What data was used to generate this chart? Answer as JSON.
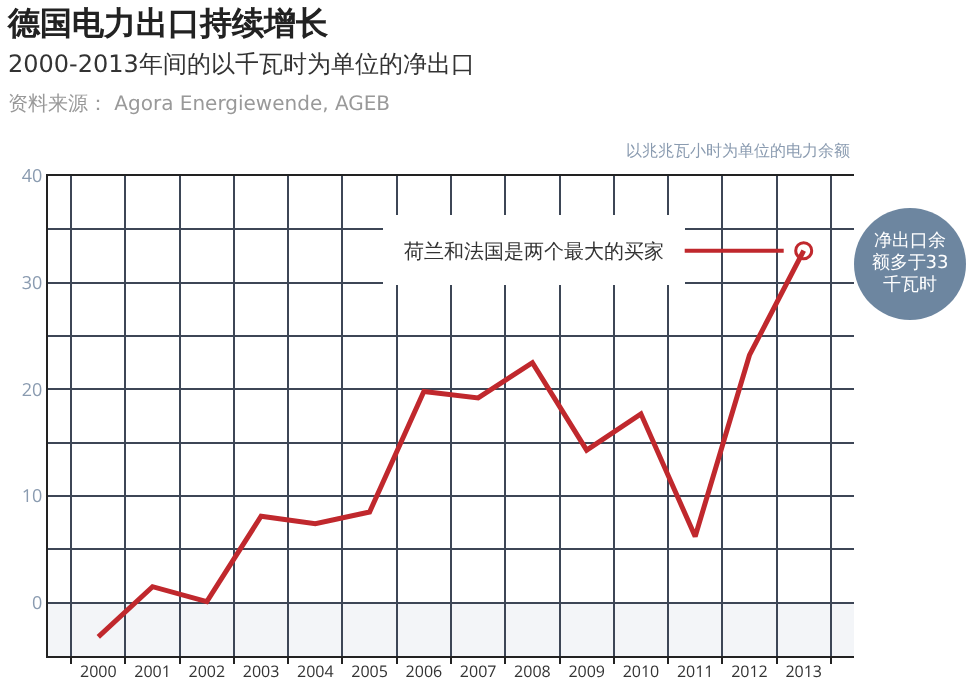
{
  "chart_data": {
    "type": "line",
    "title": "德国电力出口持续增长",
    "subtitle": "2000-2013年间的以千瓦时为单位的净出口",
    "ylabel": "以兆兆瓦小时为单位的电力余额",
    "categories": [
      "2000",
      "2001",
      "2002",
      "2003",
      "2004",
      "2005",
      "2006",
      "2007",
      "2008",
      "2009",
      "2010",
      "2011",
      "2012",
      "2013"
    ],
    "series": [
      {
        "color": "#c0282d",
        "values": [
          -3.2,
          1.5,
          0.1,
          8.1,
          7.4,
          8.5,
          19.8,
          19.2,
          22.5,
          14.3,
          17.7,
          6.2,
          23.2,
          33
        ]
      },
      {
        "type": "scatter",
        "marker": "circle",
        "color": "#c0282d",
        "values": [
          null,
          null,
          null,
          null,
          null,
          null,
          null,
          null,
          null,
          null,
          null,
          null,
          null,
          33
        ]
      }
    ],
    "ylim": [
      -5,
      40
    ],
    "yticks": [
      {
        "value": -5,
        "label": null
      },
      0,
      {
        "value": 5,
        "label": null
      },
      10,
      {
        "value": 15,
        "label": null
      },
      20,
      {
        "value": 25,
        "label": null
      },
      30,
      {
        "value": 35,
        "label": null
      },
      40
    ],
    "bands": [
      {
        "axis": "y",
        "from": -5,
        "to": 0,
        "color": "#f3f5f8"
      }
    ],
    "annotations": [
      "资料来源： Agora Energiewende, AGEB",
      {
        "text": "荷兰和法国是两个最大的买家",
        "x": "2013",
        "y": 33
      },
      "净出口余额多于33千瓦时"
    ],
    "grid": true,
    "marker": "none",
    "line_style": "solid"
  }
}
